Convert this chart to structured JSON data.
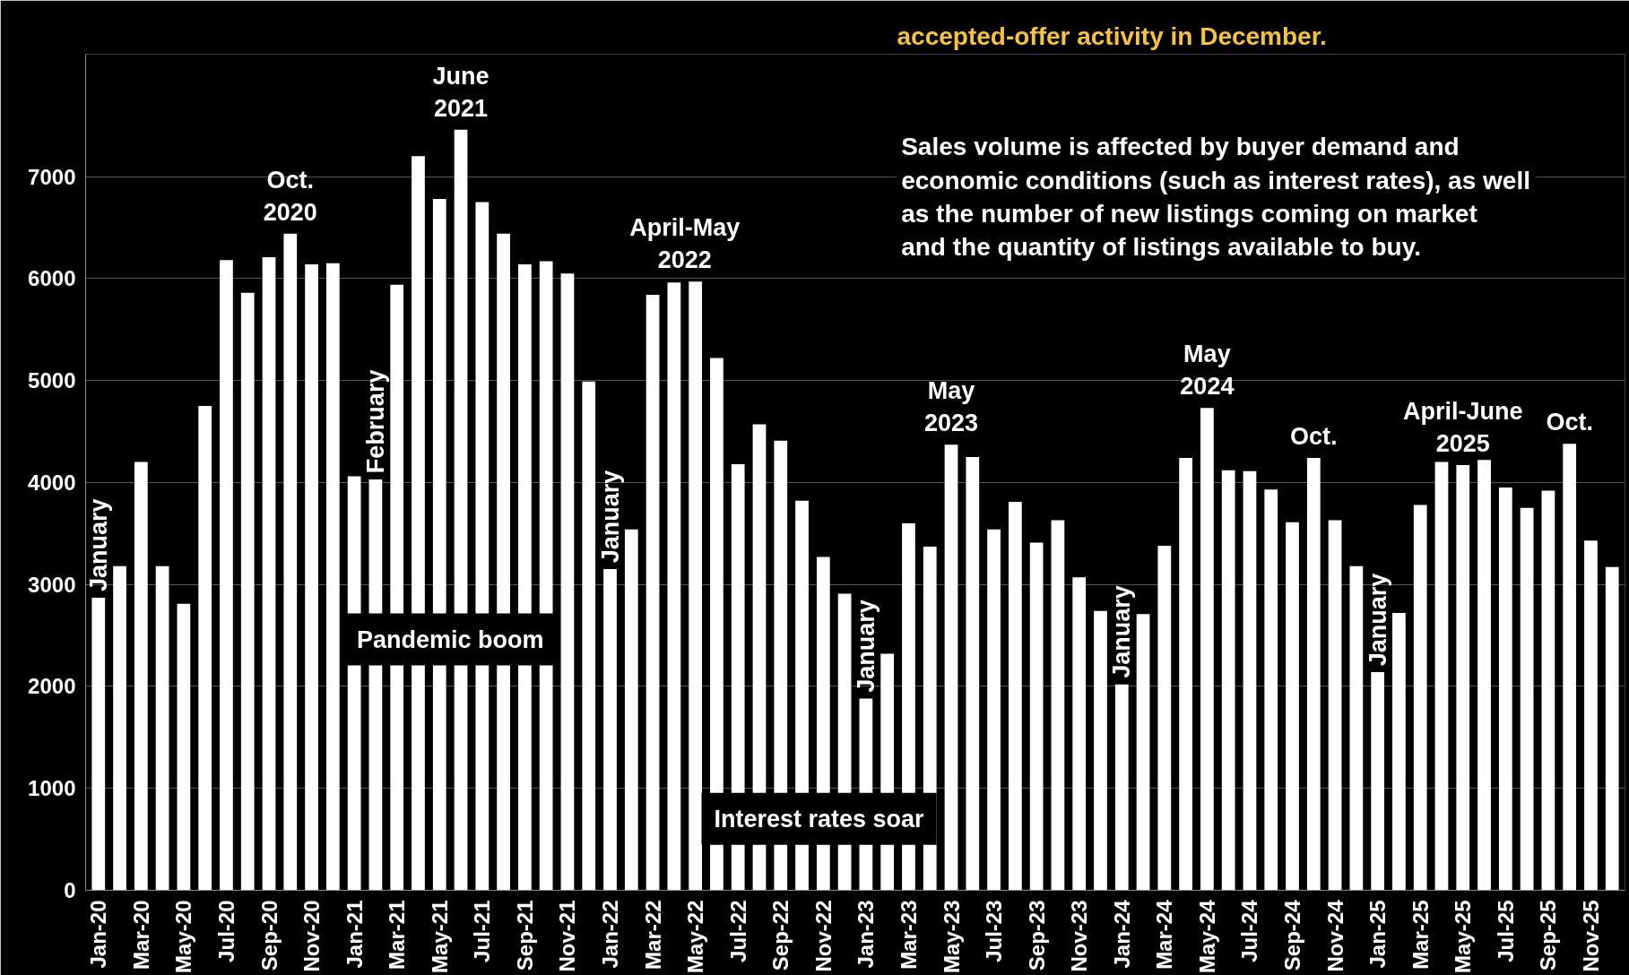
{
  "chart_data": {
    "type": "bar",
    "title": "accepted-offer activity in December.",
    "categories": [
      "Jan-20",
      null,
      "Mar-20",
      null,
      "May-20",
      null,
      "Jul-20",
      null,
      "Sep-20",
      null,
      "Nov-20",
      null,
      "Jan-21",
      null,
      "Mar-21",
      null,
      "May-21",
      null,
      "Jul-21",
      null,
      "Sep-21",
      null,
      "Nov-21",
      null,
      "Jan-22",
      null,
      "Mar-22",
      null,
      "May-22",
      null,
      "Jul-22",
      null,
      "Sep-22",
      null,
      "Nov-22",
      null,
      "Jan-23",
      null,
      "Mar-23",
      null,
      "May-23",
      null,
      "Jul-23",
      null,
      "Sep-23",
      null,
      "Nov-23",
      null,
      "Jan-24",
      null,
      "Mar-24",
      null,
      "May-24",
      null,
      "Jul-24",
      null,
      "Sep-24",
      null,
      "Nov-24",
      null,
      "Jan-25",
      null,
      "Mar-25",
      null,
      "May-25",
      null,
      "Jul-25",
      null,
      "Sep-25",
      null,
      "Nov-25",
      null
    ],
    "values": [
      2870,
      3180,
      4200,
      3180,
      2810,
      4750,
      6180,
      5860,
      6210,
      6440,
      6140,
      6150,
      4060,
      4030,
      5940,
      7200,
      6780,
      7460,
      6750,
      6440,
      6140,
      6170,
      6050,
      4990,
      3150,
      3540,
      5840,
      5960,
      5970,
      5220,
      4180,
      4570,
      4410,
      3820,
      3270,
      2910,
      1880,
      2320,
      3600,
      3370,
      4370,
      4250,
      3540,
      3810,
      3410,
      3630,
      3070,
      2740,
      2020,
      2710,
      3380,
      4240,
      4730,
      4120,
      4110,
      3930,
      3610,
      4240,
      3630,
      3180,
      2140,
      2720,
      3780,
      4200,
      4170,
      4220,
      3950,
      3750,
      3920,
      4380,
      3430,
      3170
    ],
    "color": "#ffffff",
    "ylim": [
      0,
      8200
    ],
    "yticks": [
      0,
      1000,
      2000,
      3000,
      4000,
      5000,
      6000,
      7000
    ],
    "grid": "y",
    "annotations": [
      "January",
      "Oct.\n2020",
      "February",
      "June\n2021",
      "Pandemic boom",
      "January",
      "April-May\n2022",
      "Interest rates soar",
      "January",
      "May\n2023",
      "May\n2024",
      "January",
      "Oct.",
      "January",
      "April-June\n2025",
      "Oct.",
      "Sales volume is affected by buyer demand and\neconomic conditions (such as interest rates), as well\nas the number of new listings coming on market\nand the quantity of listings available to buy."
    ]
  }
}
